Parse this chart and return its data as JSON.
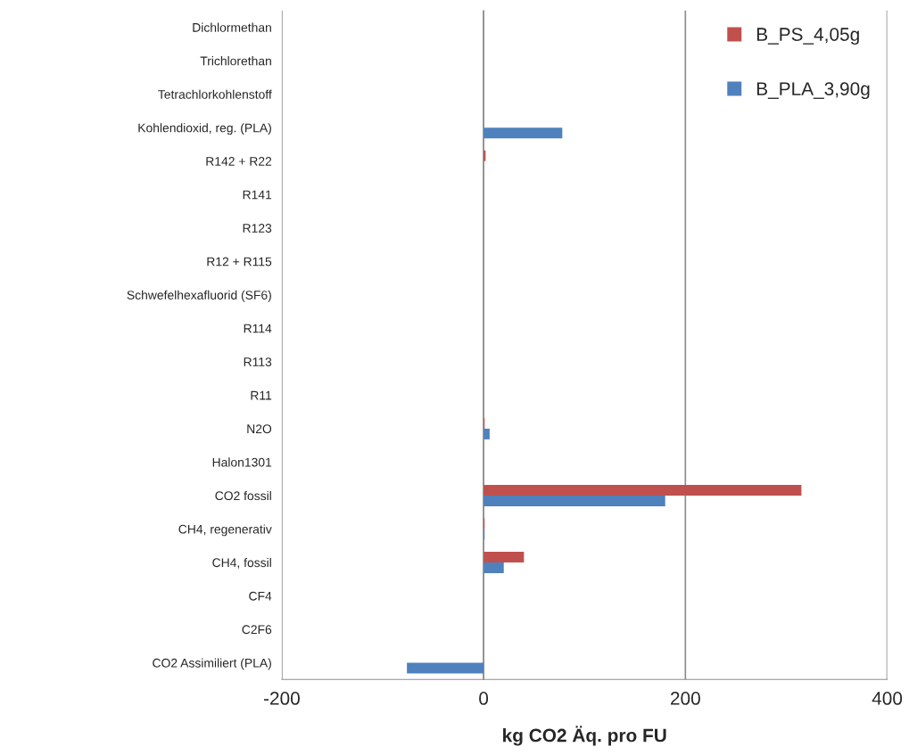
{
  "chart_data": {
    "type": "bar",
    "orientation": "horizontal",
    "xlabel": "kg CO2 Äq. pro FU",
    "categories": [
      "Dichlormethan",
      "Trichlorethan",
      "Tetrachlorkohlenstoff",
      "Kohlendioxid, reg. (PLA)",
      "R142 + R22",
      "R141",
      "R123",
      "R12 + R115",
      "Schwefelhexafluorid (SF6)",
      "R114",
      "R113",
      "R11",
      "N2O",
      "Halon1301",
      "CO2 fossil",
      "CH4, regenerativ",
      "CH4, fossil",
      "CF4",
      "C2F6",
      "CO2 Assimiliert (PLA)"
    ],
    "series": [
      {
        "name": "B_PS_4,05g",
        "color": "#c0504d",
        "values": [
          0,
          0,
          0,
          0,
          2,
          0,
          0,
          0,
          0,
          0,
          0,
          0,
          1,
          0,
          315,
          1,
          40,
          0,
          0,
          0
        ]
      },
      {
        "name": "B_PLA_3,90g",
        "color": "#4f81bd",
        "values": [
          0,
          0,
          0,
          78,
          0,
          0,
          0,
          0,
          0,
          0,
          0,
          0,
          6,
          0,
          180,
          1,
          20,
          0,
          0,
          -76
        ]
      }
    ],
    "xlim": [
      -200,
      400
    ],
    "xticks": [
      -200,
      0,
      200,
      400
    ],
    "grid": "x",
    "legend": "top right"
  }
}
